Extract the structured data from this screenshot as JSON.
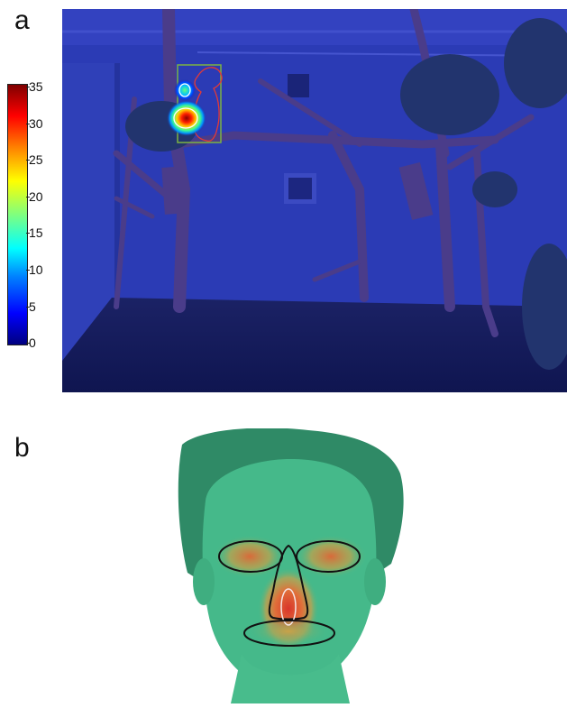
{
  "panels": {
    "a": {
      "label": "a"
    },
    "b": {
      "label": "b"
    }
  },
  "colorbar": {
    "ticks": [
      "35",
      "30",
      "25",
      "20",
      "15",
      "10",
      "5",
      "0"
    ],
    "min": 0,
    "max": 35,
    "colormap": "jet"
  },
  "colors": {
    "scene_tint": "#1c2b9a",
    "face_tint": "#45b98a",
    "roi_box": "#7cb342",
    "koala_outline": "#e53935",
    "face_outline": "#111111",
    "nose_inner_outline": "#f5e6e6"
  }
}
